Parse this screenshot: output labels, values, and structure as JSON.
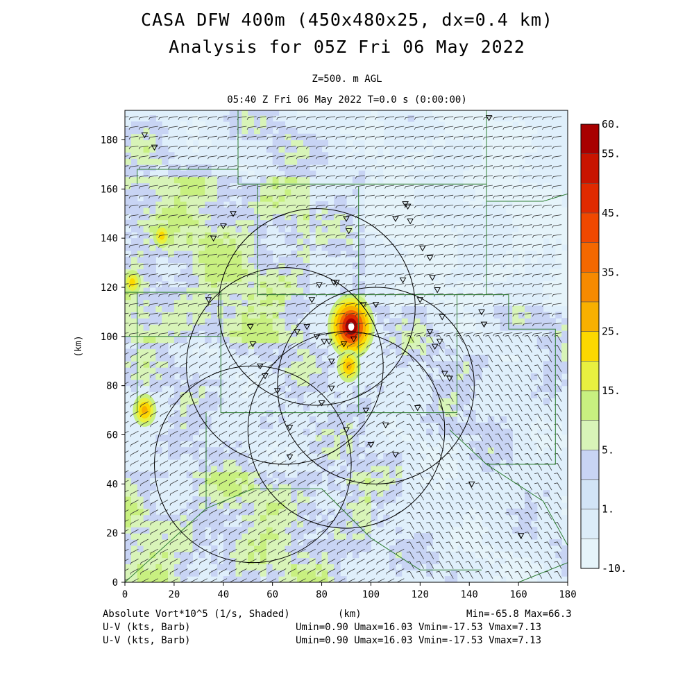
{
  "header": {
    "title_line1": "CASA DFW 400m (450x480x25, dx=0.4 km)",
    "title_line2": "Analysis for 05Z Fri 06 May 2022",
    "level": "Z=500. m AGL",
    "time_line": "05:40 Z Fri 06 May 2022   T=0.0 s (0:00:00)"
  },
  "footer": {
    "field_label": "Absolute Vort*10^5 (1/s, Shaded)",
    "xunit": "(km)",
    "minmax": "Min=-65.8 Max=66.3",
    "barb1_label": "U-V (kts, Barb)",
    "barb1_stats": "Umin=0.90 Umax=16.03 Vmin=-17.53 Vmax=7.13",
    "barb2_label": "U-V (kts, Barb)",
    "barb2_stats": "Umin=0.90 Umax=16.03 Vmin=-17.53 Vmax=7.13"
  },
  "chart_data": {
    "type": "heatmap",
    "xlabel": "",
    "ylabel": "(km)",
    "xlim": [
      0,
      180
    ],
    "ylim": [
      0,
      192
    ],
    "xticks": [
      "0",
      "20",
      "40",
      "60",
      "80",
      "100",
      "120",
      "140",
      "160",
      "180"
    ],
    "yticks": [
      "0",
      "20",
      "40",
      "60",
      "80",
      "100",
      "120",
      "140",
      "160",
      "180"
    ],
    "colorbar": {
      "labels": [
        "60.",
        "55.",
        "45.",
        "35.",
        "25.",
        "15.",
        "5.",
        "1.",
        "-10."
      ],
      "colors": [
        "#a80000",
        "#c81400",
        "#e02a00",
        "#f04800",
        "#f46800",
        "#f68a00",
        "#f8b000",
        "#fcd800",
        "#e8f040",
        "#c8f080",
        "#d8f4b8",
        "#c8d4f4",
        "#d2e4f6",
        "#dcecf8",
        "#e6f4fa"
      ]
    },
    "radar_rings": [
      {
        "center": [
          78,
          112
        ],
        "radius": 40
      },
      {
        "center": [
          65,
          88
        ],
        "radius": 40
      },
      {
        "center": [
          52,
          48
        ],
        "radius": 40
      },
      {
        "center": [
          90,
          62
        ],
        "radius": 40
      },
      {
        "center": [
          102,
          80
        ],
        "radius": 40
      }
    ],
    "vorticity_maxima": [
      {
        "x": 92,
        "y": 104,
        "value": 66.3
      },
      {
        "x": 91,
        "y": 88,
        "value": 35
      },
      {
        "x": 8,
        "y": 70,
        "value": 30
      },
      {
        "x": 3,
        "y": 122,
        "value": 25
      },
      {
        "x": 15,
        "y": 141,
        "value": 20
      }
    ],
    "stations_x": [
      8,
      12,
      34,
      36,
      40,
      44,
      51,
      52,
      55,
      57,
      62,
      67,
      67,
      70,
      74,
      76,
      78,
      79,
      80,
      81,
      83,
      84,
      84,
      85,
      86,
      89,
      90,
      90,
      91,
      93,
      97,
      98,
      100,
      102,
      106,
      110,
      110,
      113,
      114,
      115,
      116,
      119,
      120,
      121,
      124,
      124,
      125,
      126,
      127,
      128,
      129,
      130,
      132,
      141,
      145,
      146,
      148,
      161
    ],
    "stations_y": [
      182,
      177,
      115,
      140,
      145,
      150,
      104,
      97,
      88,
      84,
      78,
      63,
      51,
      102,
      104,
      115,
      100,
      121,
      73,
      98,
      98,
      90,
      79,
      122,
      122,
      97,
      62,
      148,
      143,
      99,
      113,
      70,
      56,
      113,
      64,
      52,
      148,
      123,
      154,
      153,
      147,
      71,
      115,
      136,
      102,
      132,
      124,
      96,
      119,
      98,
      108,
      85,
      83,
      40,
      110,
      105,
      189,
      19
    ]
  }
}
